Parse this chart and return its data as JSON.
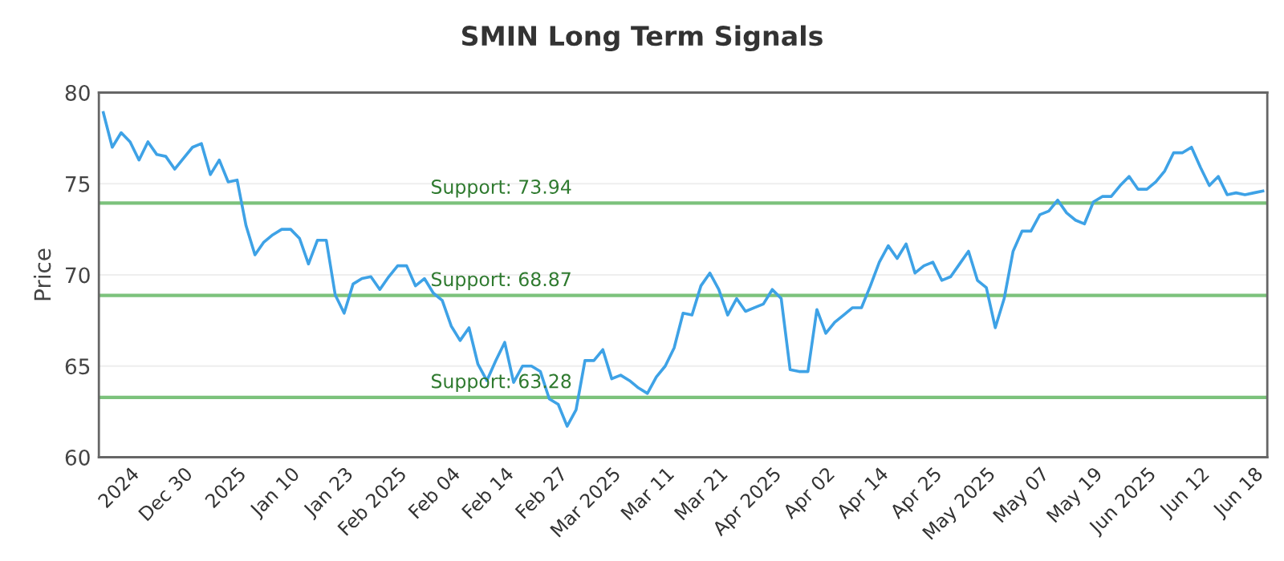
{
  "chart_data": {
    "type": "line",
    "title": "SMIN Long Term Signals",
    "ylabel": "Price",
    "categories": [
      null,
      null,
      null,
      "2024",
      null,
      null,
      null,
      null,
      null,
      "Dec 30",
      null,
      null,
      null,
      null,
      null,
      "2025",
      null,
      null,
      null,
      null,
      null,
      "Jan 10",
      null,
      null,
      null,
      null,
      null,
      "Jan 23",
      null,
      null,
      null,
      null,
      null,
      "Feb 2025",
      null,
      null,
      null,
      null,
      null,
      "Feb 04",
      null,
      null,
      null,
      null,
      null,
      "Feb 14",
      null,
      null,
      null,
      null,
      null,
      "Feb 27",
      null,
      null,
      null,
      null,
      null,
      "Mar 2025",
      null,
      null,
      null,
      null,
      null,
      "Mar 11",
      null,
      null,
      null,
      null,
      null,
      "Mar 21",
      null,
      null,
      null,
      null,
      null,
      "Apr 2025",
      null,
      null,
      null,
      null,
      null,
      "Apr 02",
      null,
      null,
      null,
      null,
      null,
      "Apr 14",
      null,
      null,
      null,
      null,
      null,
      "Apr 25",
      null,
      null,
      null,
      null,
      null,
      "May 2025",
      null,
      null,
      null,
      null,
      null,
      "May 07",
      null,
      null,
      null,
      null,
      null,
      "May 19",
      null,
      null,
      null,
      null,
      null,
      "Jun 2025",
      null,
      null,
      null,
      null,
      null,
      "Jun 12",
      null,
      null,
      null,
      null,
      null,
      "Jun 18",
      null
    ],
    "series": [
      {
        "color": "#3ea2e6",
        "values": [
          78.9,
          77.0,
          77.8,
          77.3,
          76.3,
          77.3,
          76.6,
          76.5,
          75.8,
          76.4,
          77.0,
          77.2,
          75.5,
          76.3,
          75.1,
          75.2,
          72.7,
          71.1,
          71.8,
          72.2,
          72.5,
          72.5,
          72.0,
          70.6,
          71.9,
          71.9,
          68.9,
          67.9,
          69.5,
          69.8,
          69.9,
          69.2,
          69.9,
          70.5,
          70.5,
          69.4,
          69.8,
          69.0,
          68.6,
          67.2,
          66.4,
          67.1,
          65.1,
          64.2,
          65.3,
          66.3,
          64.1,
          65.0,
          65.0,
          64.7,
          63.2,
          62.9,
          61.7,
          62.6,
          65.3,
          65.3,
          65.9,
          64.3,
          64.5,
          64.2,
          63.8,
          63.5,
          64.4,
          65.0,
          66.0,
          67.9,
          67.8,
          69.4,
          70.1,
          69.2,
          67.8,
          68.7,
          68.0,
          68.2,
          68.4,
          69.2,
          68.7,
          64.8,
          64.7,
          64.7,
          68.1,
          66.8,
          67.4,
          67.8,
          68.2,
          68.2,
          69.4,
          70.7,
          71.6,
          70.9,
          71.7,
          70.1,
          70.5,
          70.7,
          69.7,
          69.9,
          70.6,
          71.3,
          69.7,
          69.3,
          67.1,
          68.7,
          71.3,
          72.4,
          72.4,
          73.3,
          73.5,
          74.1,
          73.4,
          73.0,
          72.8,
          74.0,
          74.3,
          74.3,
          74.9,
          75.4,
          74.7,
          74.7,
          75.1,
          75.7,
          76.7,
          76.7,
          77.0,
          75.9,
          74.9,
          75.4,
          74.4,
          74.5,
          74.4,
          74.5,
          74.6
        ]
      }
    ],
    "ylim": [
      60,
      80
    ],
    "yticks": [
      60,
      65,
      70,
      75,
      80
    ],
    "grid": "y",
    "ref_lines": [
      {
        "axis": "y",
        "value": 73.94,
        "label": "Support: 73.94",
        "color": "#7cc27c"
      },
      {
        "axis": "y",
        "value": 68.87,
        "label": "Support: 68.87",
        "color": "#7cc27c"
      },
      {
        "axis": "y",
        "value": 63.28,
        "label": "Support: 63.28",
        "color": "#7cc27c"
      }
    ]
  }
}
